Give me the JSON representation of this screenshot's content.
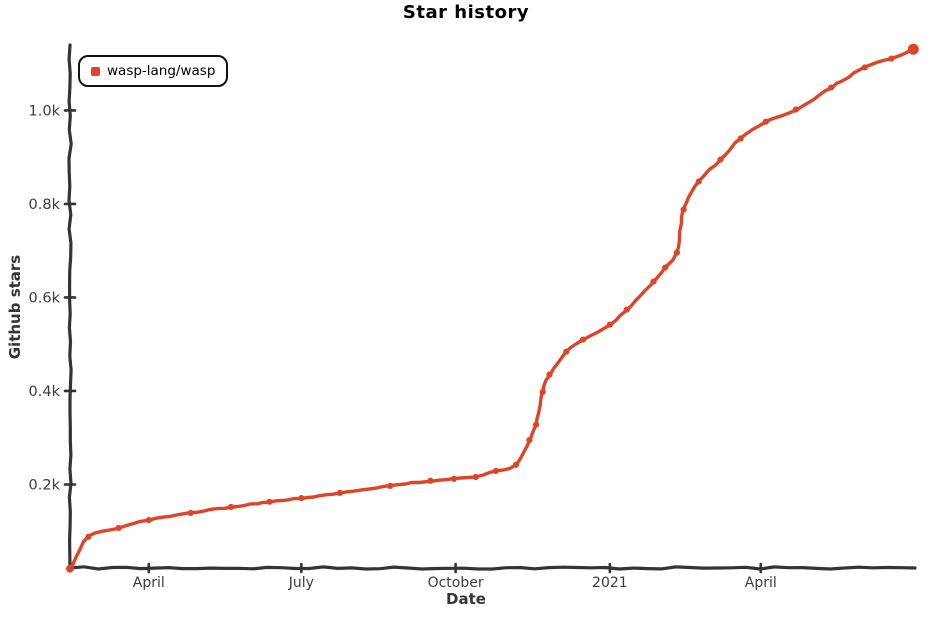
{
  "title": "Star history",
  "legend": {
    "series_label": "wasp-lang/wasp"
  },
  "colors": {
    "series": "#dd4528",
    "axis": "#343434",
    "tick_text": "#3c3c3c",
    "axis_label_text": "#343434",
    "legend_border": "#111111",
    "background": "#ffffff"
  },
  "chart_data": {
    "type": "line",
    "title": "Star history",
    "xlabel": "Date",
    "ylabel": "Github stars",
    "grid": false,
    "legend_position": "top-left",
    "x_range": [
      "2020-02-14",
      "2021-07-02"
    ],
    "ylim": [
      0,
      1140
    ],
    "x_tick_labels": [
      "April",
      "July",
      "October",
      "2021",
      "April"
    ],
    "x_tick_dates": [
      "2020-04-01",
      "2020-07-01",
      "2020-10-01",
      "2021-01-01",
      "2021-04-01"
    ],
    "y_tick_labels": [
      "0.2k",
      "0.4k",
      "0.6k",
      "0.8k",
      "1.0k"
    ],
    "y_tick_values": [
      200,
      400,
      600,
      800,
      1000
    ],
    "series": [
      {
        "name": "wasp-lang/wasp",
        "color": "#dd4528",
        "points": [
          [
            "2020-02-14",
            20
          ],
          [
            "2020-02-25",
            88
          ],
          [
            "2020-03-14",
            107
          ],
          [
            "2020-04-01",
            124
          ],
          [
            "2020-04-26",
            139
          ],
          [
            "2020-05-20",
            152
          ],
          [
            "2020-06-12",
            163
          ],
          [
            "2020-07-01",
            171
          ],
          [
            "2020-07-24",
            182
          ],
          [
            "2020-08-23",
            197
          ],
          [
            "2020-09-16",
            208
          ],
          [
            "2020-09-30",
            212
          ],
          [
            "2020-10-13",
            216
          ],
          [
            "2020-10-25",
            229
          ],
          [
            "2020-11-06",
            242
          ],
          [
            "2020-11-14",
            295
          ],
          [
            "2020-11-18",
            328
          ],
          [
            "2020-11-22",
            398
          ],
          [
            "2020-11-26",
            435
          ],
          [
            "2020-12-06",
            484
          ],
          [
            "2020-12-16",
            510
          ],
          [
            "2021-01-01",
            542
          ],
          [
            "2021-01-11",
            574
          ],
          [
            "2021-01-27",
            634
          ],
          [
            "2021-02-03",
            664
          ],
          [
            "2021-02-10",
            696
          ],
          [
            "2021-02-14",
            788
          ],
          [
            "2021-02-23",
            848
          ],
          [
            "2021-03-08",
            895
          ],
          [
            "2021-03-20",
            940
          ],
          [
            "2021-04-04",
            976
          ],
          [
            "2021-04-22",
            1002
          ],
          [
            "2021-05-13",
            1049
          ],
          [
            "2021-06-02",
            1092
          ],
          [
            "2021-06-18",
            1111
          ],
          [
            "2021-07-01",
            1131
          ]
        ]
      }
    ]
  }
}
